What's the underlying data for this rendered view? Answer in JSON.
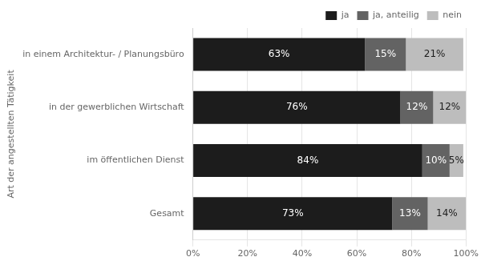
{
  "chart_data": {
    "type": "bar",
    "orientation": "horizontal",
    "stacked": true,
    "categories": [
      "in einem Architektur- / Planungsbüro",
      "in der gewerblichen Wirtschaft",
      "im öffentlichen Dienst",
      "Gesamt"
    ],
    "series": [
      {
        "name": "ja",
        "color": "#1c1c1c",
        "values": [
          63,
          76,
          84,
          73
        ],
        "value_labels": [
          "63%",
          "76%",
          "84%",
          "73%"
        ]
      },
      {
        "name": "ja, anteilig",
        "color": "#636363",
        "values": [
          15,
          12,
          10,
          13
        ],
        "value_labels": [
          "15%",
          "12%",
          "10%",
          "13%"
        ]
      },
      {
        "name": "nein",
        "color": "#bdbdbd",
        "values": [
          21,
          12,
          5,
          14
        ],
        "value_labels": [
          "21%",
          "12%",
          "5%",
          "14%"
        ]
      }
    ],
    "xlim": [
      0,
      100
    ],
    "xticks": [
      {
        "value": 0,
        "label": "0%"
      },
      {
        "value": 20,
        "label": "20%"
      },
      {
        "value": 40,
        "label": "40%"
      },
      {
        "value": 60,
        "label": "60%"
      },
      {
        "value": 80,
        "label": "80%"
      },
      {
        "value": 100,
        "label": "100%"
      }
    ],
    "ylabel": "Art der angestellten Tätigkeit",
    "grid": true,
    "legend": "upper right",
    "data_labels": true
  }
}
